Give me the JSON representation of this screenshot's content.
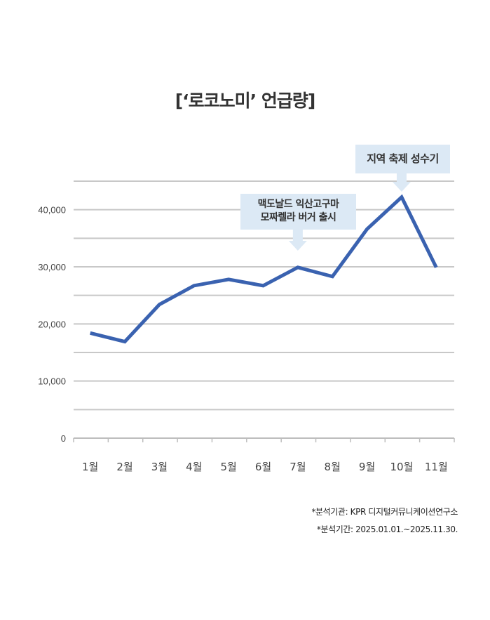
{
  "chart_data": {
    "type": "line",
    "title": "[‘로코노미’ 언급량]",
    "categories": [
      "1월",
      "2월",
      "3월",
      "4월",
      "5월",
      "6월",
      "7월",
      "8월",
      "9월",
      "10월",
      "11월"
    ],
    "values": [
      18400,
      16900,
      23400,
      26700,
      27800,
      26700,
      29900,
      28300,
      36600,
      42200,
      29900
    ],
    "ylim": [
      0,
      45000
    ],
    "yticks": [
      0,
      10000,
      20000,
      30000,
      40000
    ],
    "ytick_labels": [
      "0",
      "10,000",
      "20,000",
      "30,000",
      "40,000"
    ],
    "grid": true,
    "line_color": "#3a62b0",
    "annotations": [
      {
        "category": "7월",
        "lines": [
          "맥도날드 익산고구마",
          "모짜렐라 버거 출시"
        ]
      },
      {
        "category": "10월",
        "lines": [
          "지역 축제 성수기"
        ]
      }
    ],
    "annotation_color": "#dce9f5"
  },
  "footnotes": [
    "*분석기관: KPR 디지털커뮤니케이션연구소",
    "*분석기간: 2025.01.01.~2025.11.30."
  ]
}
